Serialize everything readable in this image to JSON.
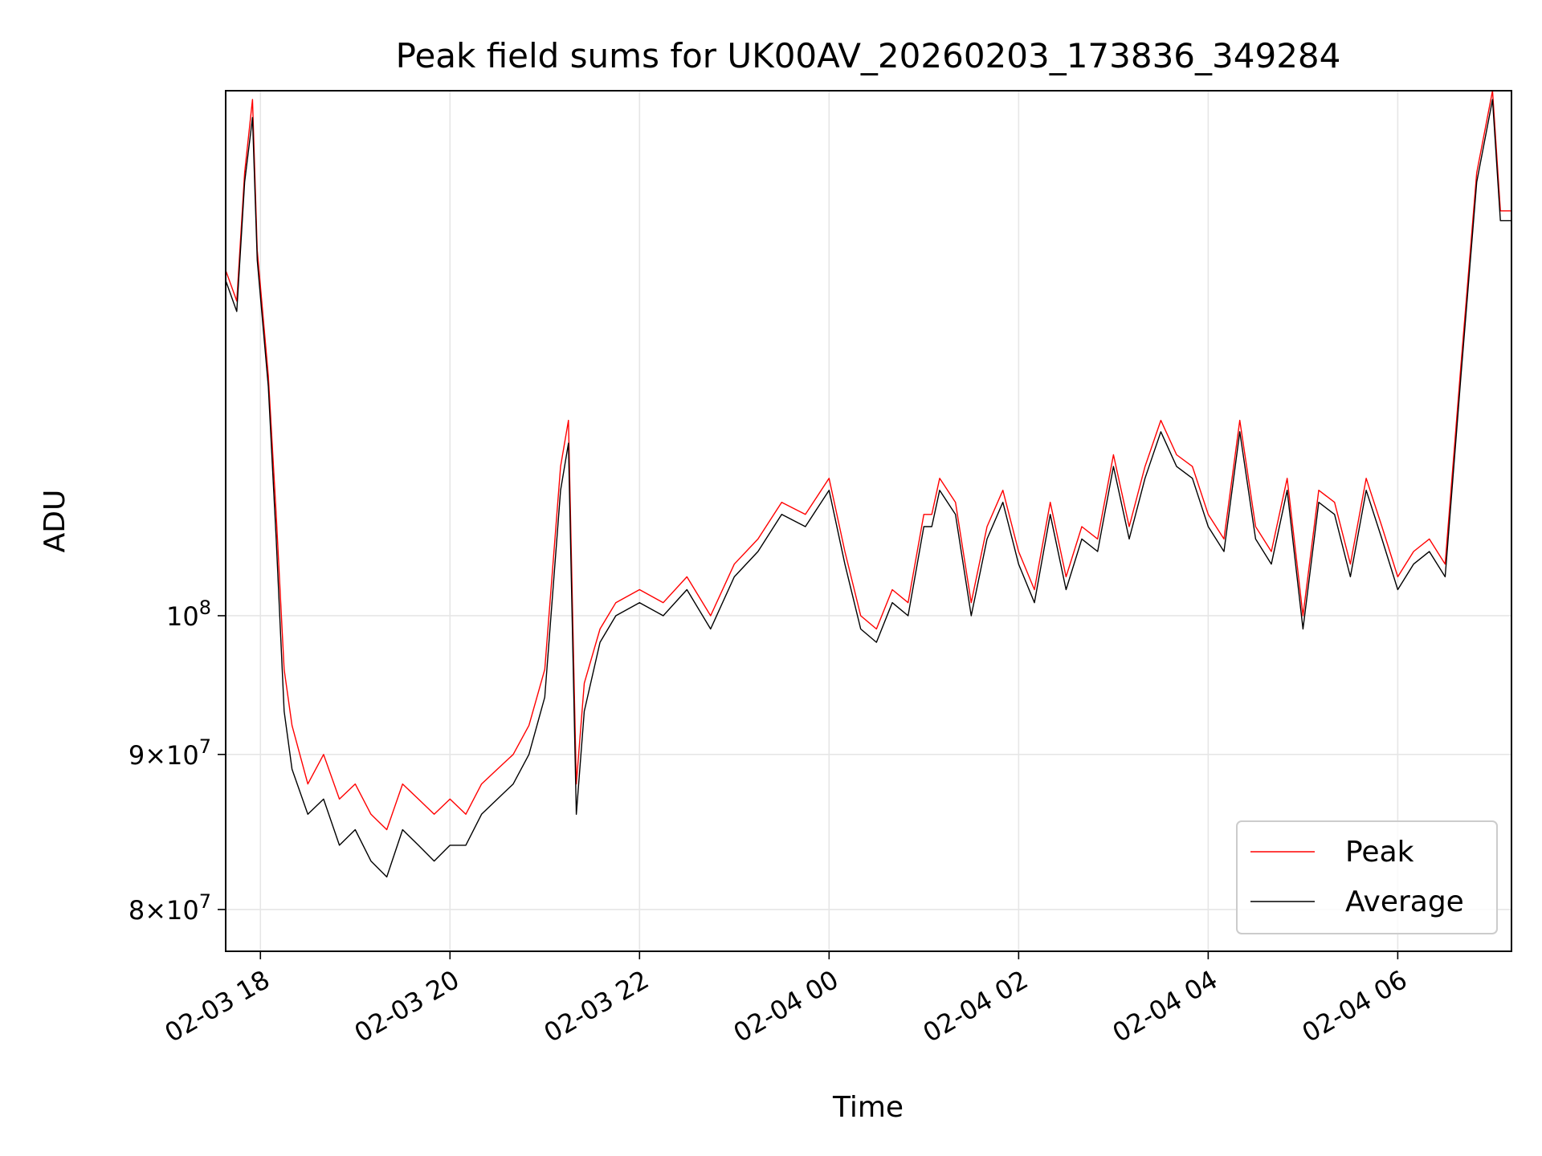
{
  "chart_data": {
    "type": "line",
    "title": "Peak field sums for UK00AV_20260203_173836_349284",
    "xlabel": "Time",
    "ylabel": "ADU",
    "y_scale": "log",
    "ylim": [
      77500000,
      149000000
    ],
    "xlim": [
      "2026-02-03 17:38",
      "2026-02-04 07:12"
    ],
    "x_ticks": [
      "2026-02-03 18:00",
      "2026-02-03 20:00",
      "2026-02-03 22:00",
      "2026-02-04 00:00",
      "2026-02-04 02:00",
      "2026-02-04 04:00",
      "2026-02-04 06:00"
    ],
    "x_tick_labels": [
      "02-03 18",
      "02-03 20",
      "02-03 22",
      "02-04 00",
      "02-04 02",
      "02-04 04",
      "02-04 06"
    ],
    "y_ticks": [
      {
        "value": 80000000,
        "mantissa": "8",
        "sign": "×",
        "base": "10",
        "exp": "7"
      },
      {
        "value": 90000000,
        "mantissa": "9",
        "sign": "×",
        "base": "10",
        "exp": "7"
      },
      {
        "value": 100000000,
        "mantissa": "",
        "sign": "",
        "base": "10",
        "exp": "8"
      }
    ],
    "grid": true,
    "legend_placement": "lower-right",
    "x": [
      "2026-02-03 17:38",
      "2026-02-03 17:45",
      "2026-02-03 17:50",
      "2026-02-03 17:55",
      "2026-02-03 17:58",
      "2026-02-03 18:05",
      "2026-02-03 18:10",
      "2026-02-03 18:15",
      "2026-02-03 18:20",
      "2026-02-03 18:30",
      "2026-02-03 18:40",
      "2026-02-03 18:50",
      "2026-02-03 19:00",
      "2026-02-03 19:10",
      "2026-02-03 19:20",
      "2026-02-03 19:30",
      "2026-02-03 19:40",
      "2026-02-03 19:50",
      "2026-02-03 20:00",
      "2026-02-03 20:10",
      "2026-02-03 20:20",
      "2026-02-03 20:30",
      "2026-02-03 20:40",
      "2026-02-03 20:50",
      "2026-02-03 21:00",
      "2026-02-03 21:10",
      "2026-02-03 21:15",
      "2026-02-03 21:20",
      "2026-02-03 21:25",
      "2026-02-03 21:35",
      "2026-02-03 21:45",
      "2026-02-03 22:00",
      "2026-02-03 22:15",
      "2026-02-03 22:30",
      "2026-02-03 22:45",
      "2026-02-03 23:00",
      "2026-02-03 23:15",
      "2026-02-03 23:30",
      "2026-02-03 23:45",
      "2026-02-04 00:00",
      "2026-02-04 00:10",
      "2026-02-04 00:20",
      "2026-02-04 00:30",
      "2026-02-04 00:40",
      "2026-02-04 00:50",
      "2026-02-04 01:00",
      "2026-02-04 01:05",
      "2026-02-04 01:10",
      "2026-02-04 01:20",
      "2026-02-04 01:30",
      "2026-02-04 01:40",
      "2026-02-04 01:50",
      "2026-02-04 02:00",
      "2026-02-04 02:10",
      "2026-02-04 02:20",
      "2026-02-04 02:30",
      "2026-02-04 02:40",
      "2026-02-04 02:50",
      "2026-02-04 03:00",
      "2026-02-04 03:10",
      "2026-02-04 03:20",
      "2026-02-04 03:30",
      "2026-02-04 03:40",
      "2026-02-04 03:50",
      "2026-02-04 04:00",
      "2026-02-04 04:10",
      "2026-02-04 04:20",
      "2026-02-04 04:30",
      "2026-02-04 04:40",
      "2026-02-04 04:50",
      "2026-02-04 05:00",
      "2026-02-04 05:10",
      "2026-02-04 05:20",
      "2026-02-04 05:30",
      "2026-02-04 05:40",
      "2026-02-04 05:50",
      "2026-02-04 06:00",
      "2026-02-04 06:10",
      "2026-02-04 06:20",
      "2026-02-04 06:30",
      "2026-02-04 06:40",
      "2026-02-04 06:50",
      "2026-02-04 07:00",
      "2026-02-04 07:05",
      "2026-02-04 07:12"
    ],
    "series": [
      {
        "name": "Peak",
        "color": "#ff0000",
        "values": [
          130000000,
          127000000,
          140000000,
          148000000,
          132000000,
          120000000,
          108000000,
          96000000,
          92000000,
          88000000,
          90000000,
          87000000,
          88000000,
          86000000,
          85000000,
          88000000,
          87000000,
          86000000,
          87000000,
          86000000,
          88000000,
          89000000,
          90000000,
          92000000,
          96000000,
          112000000,
          116000000,
          88000000,
          95000000,
          99000000,
          101000000,
          102000000,
          101000000,
          103000000,
          100000000,
          104000000,
          106000000,
          109000000,
          108000000,
          111000000,
          105000000,
          100000000,
          99000000,
          102000000,
          101000000,
          108000000,
          108000000,
          111000000,
          109000000,
          101000000,
          107000000,
          110000000,
          105000000,
          102000000,
          109000000,
          103000000,
          107000000,
          106000000,
          113000000,
          107000000,
          112000000,
          116000000,
          113000000,
          112000000,
          108000000,
          106000000,
          116000000,
          107000000,
          105000000,
          111000000,
          100000000,
          110000000,
          109000000,
          104000000,
          111000000,
          107000000,
          103000000,
          105000000,
          106000000,
          104000000,
          121000000,
          140000000,
          149000000,
          136000000,
          136000000
        ]
      },
      {
        "name": "Average",
        "color": "#000000",
        "values": [
          129000000,
          126000000,
          139000000,
          146000000,
          131000000,
          119000000,
          106000000,
          93000000,
          89000000,
          86000000,
          87000000,
          84000000,
          85000000,
          83000000,
          82000000,
          85000000,
          84000000,
          83000000,
          84000000,
          84000000,
          86000000,
          87000000,
          88000000,
          90000000,
          94000000,
          110000000,
          114000000,
          86000000,
          93000000,
          98000000,
          100000000,
          101000000,
          100000000,
          102000000,
          99000000,
          103000000,
          105000000,
          108000000,
          107000000,
          110000000,
          104000000,
          99000000,
          98000000,
          101000000,
          100000000,
          107000000,
          107000000,
          110000000,
          108000000,
          100000000,
          106000000,
          109000000,
          104000000,
          101000000,
          108000000,
          102000000,
          106000000,
          105000000,
          112000000,
          106000000,
          111000000,
          115000000,
          112000000,
          111000000,
          107000000,
          105000000,
          115000000,
          106000000,
          104000000,
          110000000,
          99000000,
          109000000,
          108000000,
          103000000,
          110000000,
          106000000,
          102000000,
          104000000,
          105000000,
          103000000,
          120000000,
          139000000,
          148000000,
          135000000,
          135000000
        ]
      }
    ]
  }
}
